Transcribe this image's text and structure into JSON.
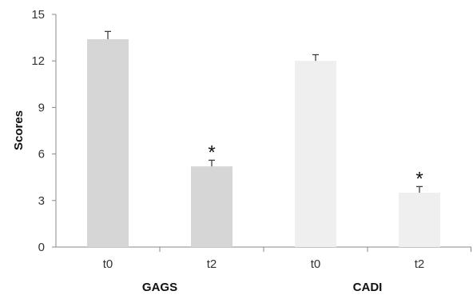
{
  "chart_data": {
    "type": "bar",
    "title": "",
    "ylabel": "Scores",
    "xlabel": "",
    "ylim": [
      0,
      15
    ],
    "yticks": [
      0,
      3,
      6,
      9,
      12,
      15
    ],
    "grid": false,
    "legend": "none",
    "groups": [
      {
        "label": "GAGS",
        "color": "#d6d6d6",
        "bars": [
          {
            "category": "t0",
            "value": 13.4,
            "error": 0.5,
            "annotation": ""
          },
          {
            "category": "t2",
            "value": 5.2,
            "error": 0.4,
            "annotation": "*"
          }
        ]
      },
      {
        "label": "CADI",
        "color": "#efefef",
        "bars": [
          {
            "category": "t0",
            "value": 12.0,
            "error": 0.4,
            "annotation": ""
          },
          {
            "category": "t2",
            "value": 3.5,
            "error": 0.4,
            "annotation": "*"
          }
        ]
      }
    ]
  }
}
